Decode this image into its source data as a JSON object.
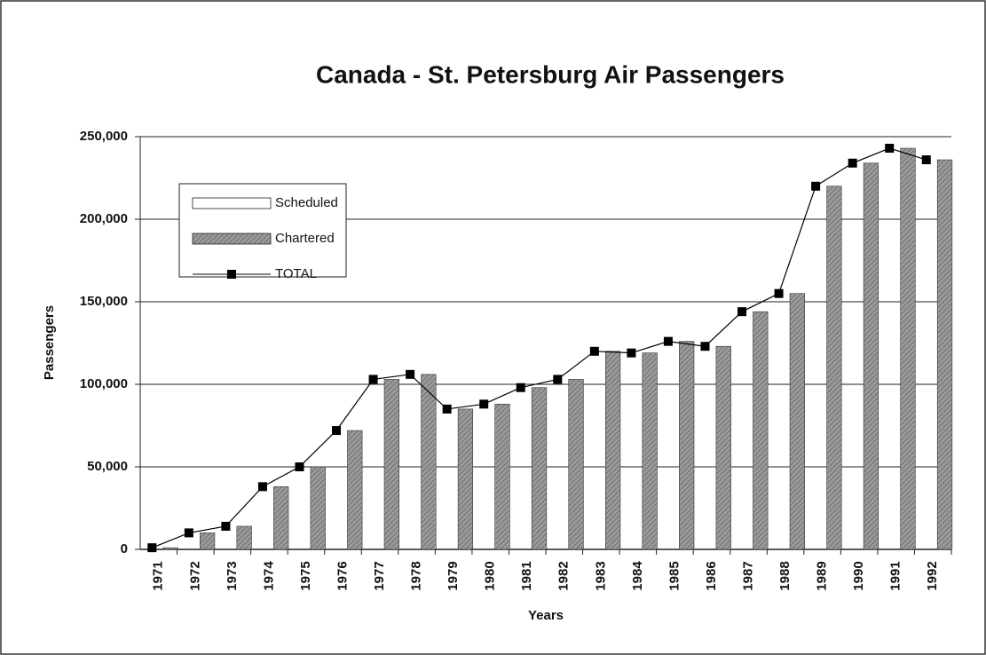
{
  "chart_data": {
    "type": "bar_line",
    "title": "Canada - St. Petersburg Air Passengers",
    "x_label": "Years",
    "y_label": "Passengers",
    "categories": [
      "1971",
      "1972",
      "1973",
      "1974",
      "1975",
      "1976",
      "1977",
      "1978",
      "1979",
      "1980",
      "1981",
      "1982",
      "1983",
      "1984",
      "1985",
      "1986",
      "1987",
      "1988",
      "1989",
      "1990",
      "1991",
      "1992"
    ],
    "series": [
      {
        "name": "Scheduled",
        "type": "bar",
        "color": "#ffffff",
        "values": [
          0,
          0,
          0,
          0,
          0,
          0,
          0,
          0,
          0,
          0,
          0,
          0,
          0,
          0,
          0,
          0,
          0,
          0,
          0,
          0,
          0,
          0
        ]
      },
      {
        "name": "Chartered",
        "type": "bar",
        "color": "#9a9a9a",
        "values": [
          1000,
          10000,
          14000,
          38000,
          50000,
          72000,
          103000,
          106000,
          85000,
          88000,
          98000,
          103000,
          120000,
          119000,
          126000,
          123000,
          144000,
          155000,
          220000,
          234000,
          243000,
          236000
        ]
      },
      {
        "name": "TOTAL",
        "type": "line",
        "color": "#000000",
        "values": [
          1000,
          10000,
          14000,
          38000,
          50000,
          72000,
          103000,
          106000,
          85000,
          88000,
          98000,
          103000,
          120000,
          119000,
          126000,
          123000,
          144000,
          155000,
          220000,
          234000,
          243000,
          236000
        ]
      }
    ],
    "ylim": [
      0,
      250000
    ],
    "yticks": [
      0,
      {
        "value": 50000,
        "label": "50,000"
      },
      {
        "value": 100000,
        "label": "100,000"
      },
      {
        "value": 150000,
        "label": "150,000"
      },
      {
        "value": 200000,
        "label": "200,000"
      },
      {
        "value": 250000,
        "label": "250,000"
      }
    ],
    "grid": true,
    "legend": "upper left"
  }
}
